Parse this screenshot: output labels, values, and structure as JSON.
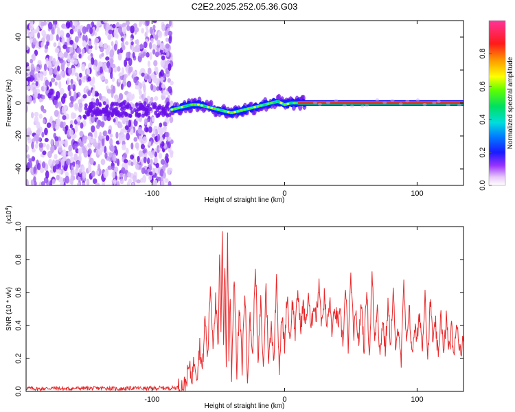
{
  "title": "C2E2.2025.252.05.36.G03",
  "chart_data": [
    {
      "type": "heatmap",
      "title": "C2E2.2025.252.05.36.G03",
      "xlabel": "Height of straight line (km)",
      "ylabel": "Frequency (Hz)",
      "xlim": [
        -195,
        135
      ],
      "ylim": [
        -50,
        50
      ],
      "xticks": [
        -100,
        0,
        100
      ],
      "xtick_labels": [
        "-100",
        "0",
        "100"
      ],
      "yticks": [
        -40,
        -20,
        0,
        20,
        40
      ],
      "ytick_labels": [
        "-40",
        "-20",
        "0",
        "20",
        "40"
      ],
      "noise_region_x": [
        -195,
        -85
      ],
      "signal_track": {
        "x": [
          -85,
          -80,
          -75,
          -70,
          -65,
          -60,
          -55,
          -50,
          -45,
          -40,
          -35,
          -30,
          -25,
          -20,
          -15,
          -10,
          -5,
          0,
          5,
          10,
          15,
          135
        ],
        "y": [
          -4,
          -3,
          -2,
          -1,
          -1,
          -2,
          -3,
          -4,
          -5,
          -6,
          -5,
          -4,
          -3,
          -2,
          -1,
          0,
          1,
          -1,
          0,
          0,
          0,
          0
        ]
      },
      "colorbar": {
        "label": "Normalized spectral amplitude",
        "ticks": [
          0.0,
          0.2,
          0.4,
          0.6,
          0.8
        ],
        "tick_labels": [
          "0.0",
          "0.2",
          "0.4",
          "0.6",
          "0.8"
        ],
        "range": [
          0,
          1
        ]
      }
    },
    {
      "type": "line",
      "xlabel": "Height of straight line (km)",
      "ylabel": "SNR (10 * v/v)",
      "y_multiplier_label": "(x10",
      "y_multiplier_exp": "4",
      "y_multiplier_close": ")",
      "xlim": [
        -195,
        135
      ],
      "ylim": [
        0,
        1.0
      ],
      "xticks": [
        -100,
        0,
        100
      ],
      "xtick_labels": [
        "-100",
        "0",
        "100"
      ],
      "yticks": [
        0.0,
        0.2,
        0.4,
        0.6,
        0.8,
        1.0
      ],
      "ytick_labels": [
        "0.0",
        "0.2",
        "0.4",
        "0.6",
        "0.8",
        "1.0"
      ],
      "series": [
        {
          "name": "SNR",
          "color": "#e8282a",
          "x": [
            -195,
            -185,
            -175,
            -165,
            -155,
            -145,
            -135,
            -125,
            -115,
            -105,
            -95,
            -85,
            -80,
            -75,
            -72,
            -70,
            -68,
            -66,
            -64,
            -62,
            -60,
            -58,
            -56,
            -54,
            -52,
            -50,
            -49,
            -48,
            -47,
            -46,
            -45,
            -44,
            -43,
            -42,
            -41,
            -40,
            -38,
            -36,
            -34,
            -32,
            -30,
            -28,
            -26,
            -24,
            -22,
            -20,
            -18,
            -16,
            -14,
            -12,
            -10,
            -8,
            -6,
            -4,
            -2,
            0,
            2,
            4,
            6,
            8,
            10,
            12,
            14,
            16,
            18,
            20,
            22,
            24,
            26,
            28,
            30,
            32,
            34,
            36,
            38,
            40,
            42,
            44,
            46,
            48,
            50,
            52,
            54,
            56,
            58,
            60,
            62,
            64,
            66,
            68,
            70,
            72,
            74,
            76,
            78,
            80,
            82,
            84,
            86,
            88,
            90,
            92,
            94,
            96,
            98,
            100,
            102,
            104,
            106,
            108,
            110,
            112,
            114,
            116,
            118,
            120,
            122,
            124,
            126,
            128,
            130,
            132,
            135
          ],
          "values": [
            0.02,
            0.015,
            0.02,
            0.015,
            0.02,
            0.018,
            0.02,
            0.015,
            0.02,
            0.018,
            0.02,
            0.02,
            0.025,
            0.04,
            0.15,
            0.08,
            0.2,
            0.1,
            0.28,
            0.12,
            0.45,
            0.2,
            0.65,
            0.3,
            0.55,
            0.25,
            0.85,
            0.35,
            1.0,
            0.3,
            0.78,
            0.15,
            0.95,
            0.2,
            0.6,
            0.1,
            0.72,
            0.12,
            0.5,
            0.15,
            0.62,
            0.1,
            0.45,
            0.2,
            0.8,
            0.15,
            0.55,
            0.12,
            0.65,
            0.18,
            0.4,
            0.2,
            0.7,
            0.15,
            0.45,
            0.28,
            0.6,
            0.3,
            0.55,
            0.35,
            0.62,
            0.38,
            0.52,
            0.4,
            0.6,
            0.35,
            0.55,
            0.45,
            0.68,
            0.4,
            0.58,
            0.38,
            0.55,
            0.35,
            0.5,
            0.42,
            0.45,
            0.3,
            0.62,
            0.28,
            0.7,
            0.35,
            0.45,
            0.3,
            0.55,
            0.25,
            0.65,
            0.2,
            0.72,
            0.3,
            0.55,
            0.2,
            0.45,
            0.25,
            0.52,
            0.3,
            0.6,
            0.22,
            0.42,
            0.18,
            0.65,
            0.25,
            0.55,
            0.2,
            0.4,
            0.3,
            0.48,
            0.25,
            0.62,
            0.2,
            0.55,
            0.3,
            0.4,
            0.18,
            0.5,
            0.2,
            0.45,
            0.25,
            0.38,
            0.2,
            0.45,
            0.25,
            0.3
          ]
        }
      ]
    }
  ]
}
